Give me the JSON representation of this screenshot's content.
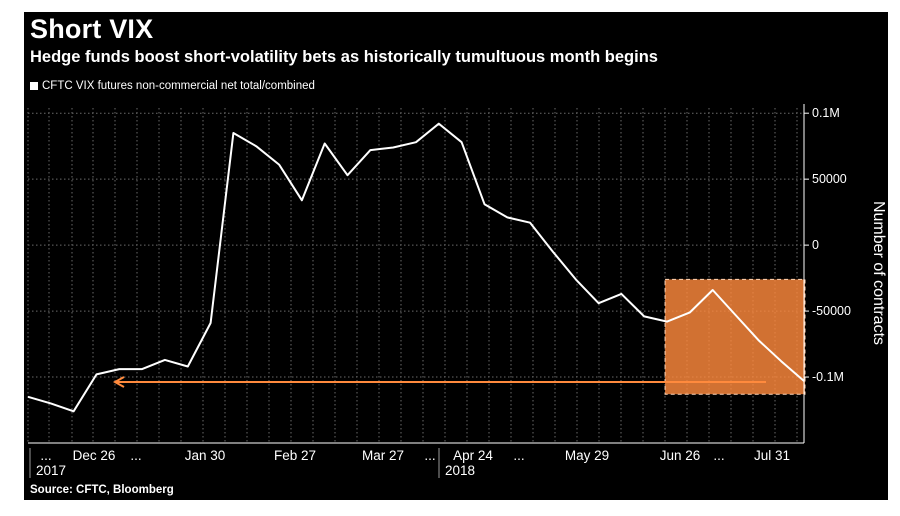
{
  "title": "Short VIX",
  "subtitle": "Hedge funds boost short-volatility bets as historically tumultuous month begins",
  "legend": "CFTC VIX futures non-commercial net total/combined",
  "source": "Source: CFTC, Bloomberg",
  "chart_data": {
    "type": "line",
    "ylabel": "Number of contracts",
    "ylim": [
      -150000,
      110000
    ],
    "y_ticks": [
      {
        "value": 100000,
        "label": "0.1M"
      },
      {
        "value": 50000,
        "label": "50000"
      },
      {
        "value": 0,
        "label": "0"
      },
      {
        "value": -50000,
        "label": "-50000"
      },
      {
        "value": -100000,
        "label": "-0.1M"
      }
    ],
    "x_ticks": [
      "...",
      "Dec 26",
      "...",
      "Jan 30",
      "Feb 27",
      "Mar 27",
      "...",
      "Apr 24",
      "...",
      "May 29",
      "Jun 26",
      "...",
      "Jul 31"
    ],
    "year_labels": [
      "2017",
      "2018"
    ],
    "series": [
      {
        "values": [
          -115000,
          -120000,
          -126000,
          -98000,
          -94000,
          -94000,
          -87000,
          -92000,
          -59000,
          85000,
          75000,
          61000,
          34000,
          77000,
          53000,
          72000,
          74000,
          78000,
          92000,
          78000,
          31000,
          21000,
          17000,
          -5000,
          -26000,
          -44000,
          -37000,
          -54000,
          -58000,
          -51000,
          -34000,
          -53000,
          -72000,
          -88000,
          -103000
        ]
      }
    ],
    "grid": true,
    "highlight": {
      "color": "#ff8a3d",
      "ymin": -113000,
      "ymax": -26000
    },
    "arrow": {
      "color": "#ff8a3d",
      "y": -103000
    }
  }
}
